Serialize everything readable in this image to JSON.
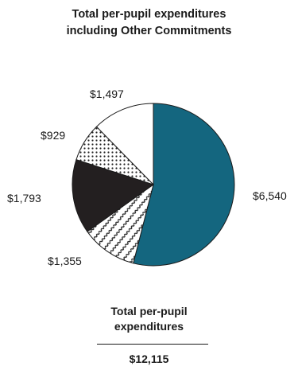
{
  "chart_data": {
    "type": "pie",
    "title_lines": [
      "Total per-pupil expenditures",
      "including Other Commitments"
    ],
    "slices": [
      {
        "label": "$6,540",
        "value": 6540,
        "color": "#14667f",
        "pattern": "solid"
      },
      {
        "label": "$1,355",
        "value": 1355,
        "color": "#ffffff",
        "pattern": "wavy-diagonal"
      },
      {
        "label": "$1,793",
        "value": 1793,
        "color": "#231f20",
        "pattern": "solid"
      },
      {
        "label": "$929",
        "value": 929,
        "color": "#ffffff",
        "pattern": "dots"
      },
      {
        "label": "$1,497",
        "value": 1497,
        "color": "#ffffff",
        "pattern": "solid"
      }
    ],
    "start": "12 o'clock, clockwise"
  },
  "summary": {
    "label_lines": [
      "Total per-pupil",
      "expenditures"
    ],
    "total": "$12,115"
  }
}
